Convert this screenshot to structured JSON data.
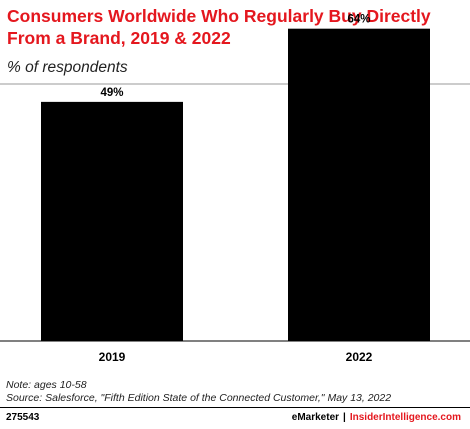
{
  "title": "Consumers Worldwide Who Regularly Buy Directly From a Brand, 2019 & 2022",
  "subtitle": "% of respondents",
  "chart_data": {
    "type": "bar",
    "categories": [
      "2019",
      "2022"
    ],
    "values": [
      49,
      64
    ],
    "value_labels": [
      "49%",
      "64%"
    ],
    "ylim": [
      0,
      100
    ],
    "grid": false,
    "bar_color": "#000000"
  },
  "footer": {
    "note": "Note: ages 10-58",
    "source": "Source: Salesforce, \"Fifth Edition State of the Connected Customer,\" May 13, 2022",
    "chart_id": "275543",
    "brand_left": "eMarketer",
    "brand_sep": "|",
    "brand_right": "InsiderIntelligence.com"
  },
  "colors": {
    "accent": "#e4171e",
    "bars": "#000000"
  }
}
